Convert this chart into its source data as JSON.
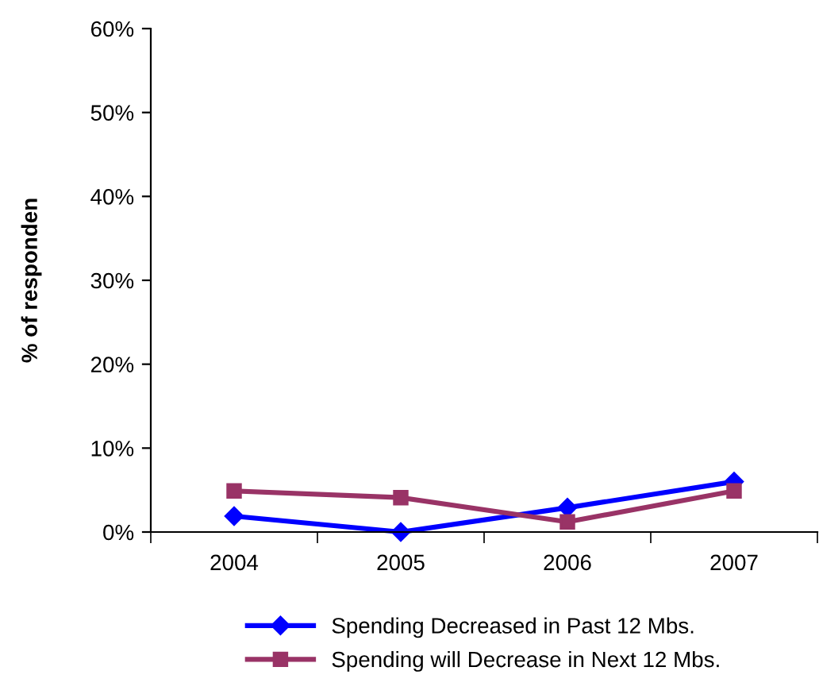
{
  "chart_data": {
    "type": "line",
    "ylabel": "% of responden",
    "categories": [
      "2004",
      "2005",
      "2006",
      "2007"
    ],
    "series": [
      {
        "name": "Spending Decreased in Past 12 Mbs.",
        "color": "#0000ff",
        "marker": "diamond",
        "values": [
          1.9,
          0,
          2.9,
          6.0
        ]
      },
      {
        "name": "Spending will Decrease in Next 12 Mbs.",
        "color": "#993366",
        "marker": "square",
        "values": [
          4.9,
          4.1,
          1.2,
          4.9
        ]
      }
    ],
    "ylim": [
      0,
      60
    ],
    "yticks": [
      {
        "value": 0,
        "label": "0%"
      },
      {
        "value": 10,
        "label": "10%"
      },
      {
        "value": 20,
        "label": "20%"
      },
      {
        "value": 30,
        "label": "30%"
      },
      {
        "value": 40,
        "label": "40%"
      },
      {
        "value": 50,
        "label": "50%"
      },
      {
        "value": 60,
        "label": "60%"
      }
    ],
    "grid": false,
    "legend": "bottom"
  }
}
